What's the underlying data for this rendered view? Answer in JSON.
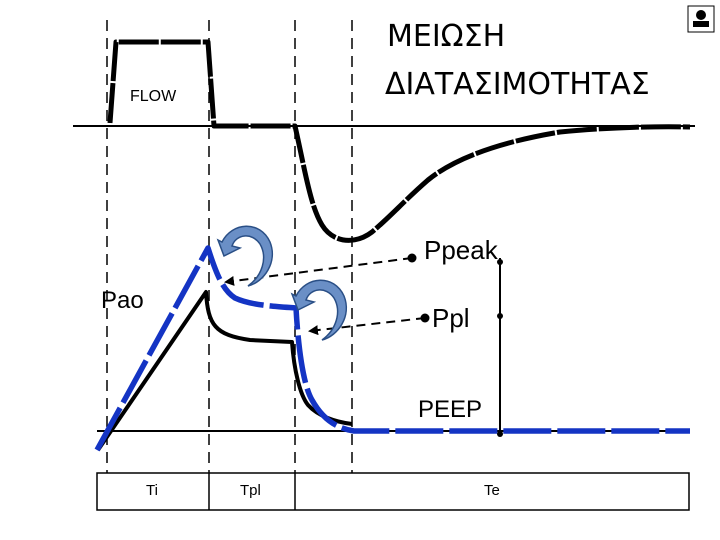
{
  "title_line1": "ΜΕΙΩΣΗ",
  "title_line2": "ΔΙΑΤΑΣΙΜΟΤΗΤΑΣ",
  "labels": {
    "flow": "FLOW",
    "pao": "Pao",
    "ppeak": "Ppeak",
    "ppl": "Ppl",
    "peep": "PEEP"
  },
  "timeline": {
    "ti": "Ti",
    "tpl": "Tpl",
    "te": "Te"
  },
  "colors": {
    "blue_curve": "#1434c4",
    "arrow_fill": "#6a8fc6",
    "black": "#000000"
  },
  "icons": [
    "corner-logo-icon",
    "curved-arrow-icon"
  ]
}
